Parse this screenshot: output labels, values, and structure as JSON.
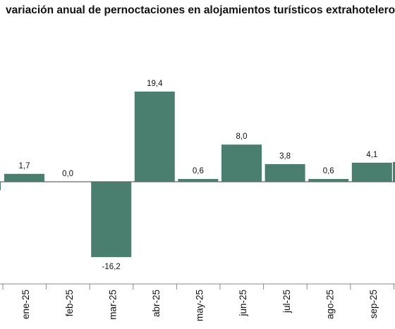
{
  "chart_data": {
    "type": "bar",
    "title": "variación anual de pernoctaciones en alojamientos turísticos extrahoteleros",
    "categories": [
      "ene-25",
      "feb-25",
      "mar-25",
      "abr-25",
      "may-25",
      "jun-25",
      "jul-25",
      "ago-25",
      "sep-25"
    ],
    "values": [
      1.7,
      0.0,
      -16.2,
      19.4,
      0.6,
      8.0,
      3.8,
      0.6,
      4.1
    ],
    "value_labels": [
      "1,7",
      "0,0",
      "-16,2",
      "19,4",
      "0,6",
      "8,0",
      "3,8",
      "0,6",
      "4,1"
    ],
    "xlabel": "",
    "ylabel": "",
    "ylim": [
      -22.7,
      28.3
    ],
    "grid": false,
    "colors": {
      "bar": "#4a7f70",
      "axis": "#666666"
    }
  }
}
